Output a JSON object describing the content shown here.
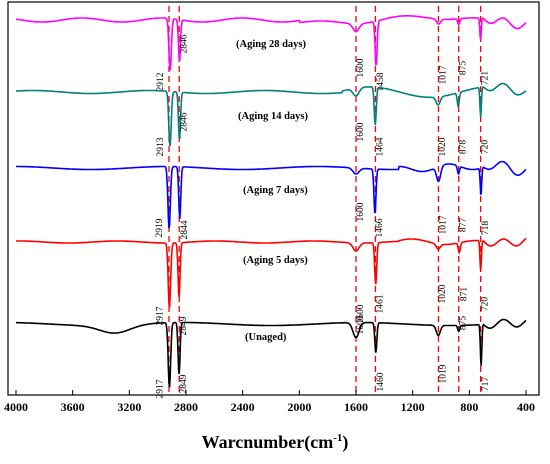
{
  "chart_data": {
    "type": "line",
    "title": "",
    "xlabel_main": "Warcnumber(cm",
    "xlabel_sup": "-1",
    "xlabel_close": ")",
    "ylabel": "",
    "xlim": [
      4000,
      400
    ],
    "x_reversed": true,
    "x_ticks": [
      4000,
      3600,
      3200,
      2800,
      2400,
      2000,
      1600,
      1200,
      800,
      400
    ],
    "y_ticks_shown": false,
    "reference_lines": [
      2920,
      2848,
      1600,
      1463,
      1018,
      875,
      720
    ],
    "reference_line_color": "#ff0000",
    "series": [
      {
        "name": "(Aging 28 days)",
        "color": "#ff00ff",
        "baseline": 20,
        "peaks": [
          {
            "x": 2912,
            "depth": 52,
            "width": 12,
            "label": "2912"
          },
          {
            "x": 2846,
            "depth": 42,
            "width": 10,
            "label": "2846"
          },
          {
            "x": 1600,
            "depth": 8,
            "width": 30,
            "label": "1600"
          },
          {
            "x": 1458,
            "depth": 45,
            "width": 10,
            "label": "1458"
          },
          {
            "x": 1017,
            "depth": 5,
            "width": 20,
            "label": "1017"
          },
          {
            "x": 875,
            "depth": 6,
            "width": 10,
            "label": "875"
          },
          {
            "x": 721,
            "depth": 22,
            "width": 7,
            "label": "721"
          }
        ]
      },
      {
        "name": "(Aging 14 days)",
        "color": "#008080",
        "baseline": 92,
        "peaks": [
          {
            "x": 2913,
            "depth": 55,
            "width": 12,
            "label": "2913"
          },
          {
            "x": 2846,
            "depth": 48,
            "width": 10,
            "label": "2846"
          },
          {
            "x": 1600,
            "depth": 8,
            "width": 30,
            "label": "1600"
          },
          {
            "x": 1464,
            "depth": 38,
            "width": 10,
            "label": "1464"
          },
          {
            "x": 1020,
            "depth": 8,
            "width": 20,
            "label": "1020"
          },
          {
            "x": 878,
            "depth": 14,
            "width": 10,
            "label": "878"
          },
          {
            "x": 720,
            "depth": 30,
            "width": 7,
            "label": "720"
          }
        ]
      },
      {
        "name": "(Aging 7 days)",
        "color": "#0000ff",
        "baseline": 168,
        "peaks": [
          {
            "x": 2919,
            "depth": 62,
            "width": 12,
            "label": "2919"
          },
          {
            "x": 2844,
            "depth": 52,
            "width": 10,
            "label": "2844"
          },
          {
            "x": 1600,
            "depth": 6,
            "width": 30,
            "label": "1600"
          },
          {
            "x": 1466,
            "depth": 45,
            "width": 10,
            "label": "1466"
          },
          {
            "x": 1017,
            "depth": 15,
            "width": 20,
            "label": "1017"
          },
          {
            "x": 877,
            "depth": 8,
            "width": 10,
            "label": "877"
          },
          {
            "x": 718,
            "depth": 28,
            "width": 7,
            "label": "718"
          }
        ]
      },
      {
        "name": "(Aging 5 days)",
        "color": "#ff0000",
        "baseline": 242,
        "peaks": [
          {
            "x": 2917,
            "depth": 65,
            "width": 12,
            "label": "2917"
          },
          {
            "x": 2849,
            "depth": 55,
            "width": 10,
            "label": "2849"
          },
          {
            "x": 1600,
            "depth": 8,
            "width": 30,
            "label": "1600"
          },
          {
            "x": 1461,
            "depth": 42,
            "width": 10,
            "label": "1461"
          },
          {
            "x": 1020,
            "depth": 5,
            "width": 20,
            "label": "1020"
          },
          {
            "x": 871,
            "depth": 10,
            "width": 10,
            "label": "871"
          },
          {
            "x": 720,
            "depth": 30,
            "width": 7,
            "label": "720"
          }
        ]
      },
      {
        "name": "(Unaged)",
        "color": "#000000",
        "baseline": 324,
        "peaks": [
          {
            "x": 2917,
            "depth": 65,
            "width": 12,
            "label": "2917"
          },
          {
            "x": 2849,
            "depth": 52,
            "width": 10,
            "label": "2849"
          },
          {
            "x": 1600,
            "depth": 15,
            "width": 30,
            "label": "1600"
          },
          {
            "x": 1460,
            "depth": 30,
            "width": 10,
            "label": "1460"
          },
          {
            "x": 1019,
            "depth": 10,
            "width": 20,
            "label": "1019"
          },
          {
            "x": 875,
            "depth": 6,
            "width": 10,
            "label": "875"
          },
          {
            "x": 717,
            "depth": 42,
            "width": 7,
            "label": "717"
          }
        ]
      }
    ]
  }
}
